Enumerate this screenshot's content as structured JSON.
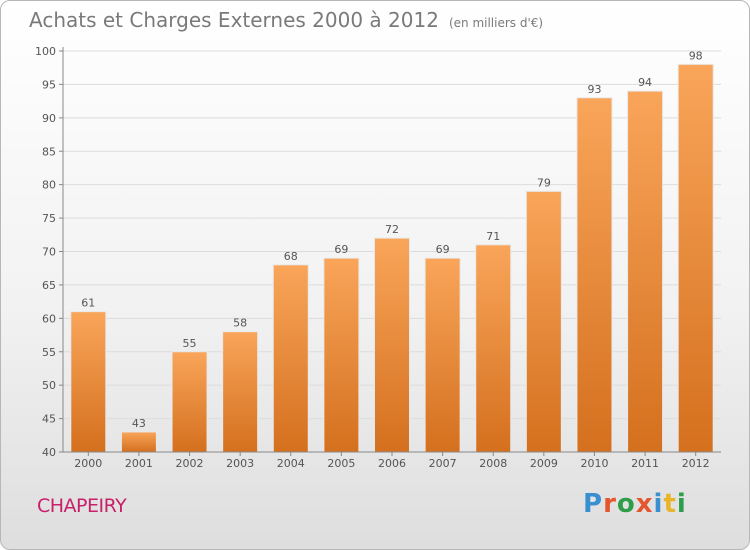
{
  "title": "Achats et Charges Externes 2000 à 2012",
  "subtitle": "(en milliers d'€)",
  "commune": "CHAPEIRY",
  "logo": {
    "text": "Proxiti",
    "letter_colors": [
      "#3a8fd0",
      "#e4572e",
      "#2e9e4a",
      "#e4572e",
      "#3a8fd0",
      "#e8b52a",
      "#2e9e4a"
    ]
  },
  "colors": {
    "bar_top": "#f9a55a",
    "bar_bottom": "#d4701e",
    "axis": "#888888",
    "grid": "#dcdcdc",
    "text": "#555555"
  },
  "chart_data": {
    "type": "bar",
    "categories": [
      "2000",
      "2001",
      "2002",
      "2003",
      "2004",
      "2005",
      "2006",
      "2007",
      "2008",
      "2009",
      "2010",
      "2011",
      "2012"
    ],
    "values": [
      61,
      43,
      55,
      58,
      68,
      69,
      72,
      69,
      71,
      79,
      93,
      94,
      98
    ],
    "ylim": [
      40,
      100
    ],
    "yticks": [
      40,
      45,
      50,
      55,
      60,
      65,
      70,
      75,
      80,
      85,
      90,
      95,
      100
    ],
    "grid": true
  }
}
